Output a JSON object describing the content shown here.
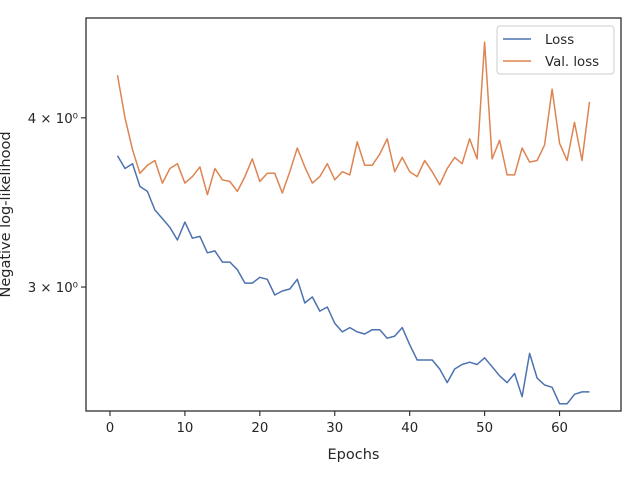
{
  "chart_data": {
    "type": "line",
    "xlabel": "Epochs",
    "ylabel": "Negative log-likelihood",
    "x_scale": "linear",
    "y_scale": "log",
    "xlim": [
      -3.2,
      68.2
    ],
    "ylim": [
      2.43,
      4.74
    ],
    "x_ticks": [
      0,
      10,
      20,
      30,
      40,
      50,
      60
    ],
    "y_ticks": [
      {
        "value": 3,
        "label": "3 × 10⁰"
      },
      {
        "value": 4,
        "label": "4 × 10⁰"
      }
    ],
    "grid": false,
    "legend_position": "top-right",
    "colors": {
      "Loss": "#4c72b0",
      "Val. loss": "#dd8452"
    },
    "x": [
      1,
      2,
      3,
      4,
      5,
      6,
      7,
      8,
      9,
      10,
      11,
      12,
      13,
      14,
      15,
      16,
      17,
      18,
      19,
      20,
      21,
      22,
      23,
      24,
      25,
      26,
      27,
      28,
      29,
      30,
      31,
      32,
      33,
      34,
      35,
      36,
      37,
      38,
      39,
      40,
      41,
      42,
      43,
      44,
      45,
      46,
      47,
      48,
      49,
      50,
      51,
      52,
      53,
      54,
      55,
      56,
      57,
      58,
      59,
      60,
      61,
      62,
      63,
      64
    ],
    "series": [
      {
        "name": "Loss",
        "values": [
          3.75,
          3.67,
          3.7,
          3.56,
          3.53,
          3.42,
          3.37,
          3.32,
          3.25,
          3.35,
          3.26,
          3.27,
          3.18,
          3.19,
          3.13,
          3.13,
          3.09,
          3.02,
          3.02,
          3.05,
          3.04,
          2.96,
          2.98,
          2.99,
          3.04,
          2.92,
          2.95,
          2.88,
          2.9,
          2.82,
          2.78,
          2.8,
          2.78,
          2.77,
          2.79,
          2.79,
          2.75,
          2.76,
          2.8,
          2.72,
          2.65,
          2.65,
          2.65,
          2.61,
          2.55,
          2.61,
          2.63,
          2.64,
          2.63,
          2.66,
          2.62,
          2.58,
          2.55,
          2.59,
          2.49,
          2.68,
          2.57,
          2.54,
          2.53,
          2.46,
          2.46,
          2.5,
          2.51,
          2.51
        ]
      },
      {
        "name": "Val. loss",
        "values": [
          4.3,
          4.0,
          3.79,
          3.64,
          3.69,
          3.72,
          3.58,
          3.67,
          3.7,
          3.58,
          3.62,
          3.68,
          3.51,
          3.67,
          3.6,
          3.59,
          3.53,
          3.62,
          3.73,
          3.59,
          3.64,
          3.64,
          3.52,
          3.65,
          3.8,
          3.68,
          3.58,
          3.62,
          3.7,
          3.6,
          3.65,
          3.63,
          3.84,
          3.69,
          3.69,
          3.76,
          3.86,
          3.65,
          3.74,
          3.65,
          3.62,
          3.72,
          3.65,
          3.57,
          3.67,
          3.74,
          3.7,
          3.86,
          3.73,
          4.55,
          3.73,
          3.85,
          3.63,
          3.63,
          3.8,
          3.71,
          3.72,
          3.82,
          4.2,
          3.83,
          3.72,
          3.97,
          3.72,
          4.11
        ]
      }
    ]
  }
}
